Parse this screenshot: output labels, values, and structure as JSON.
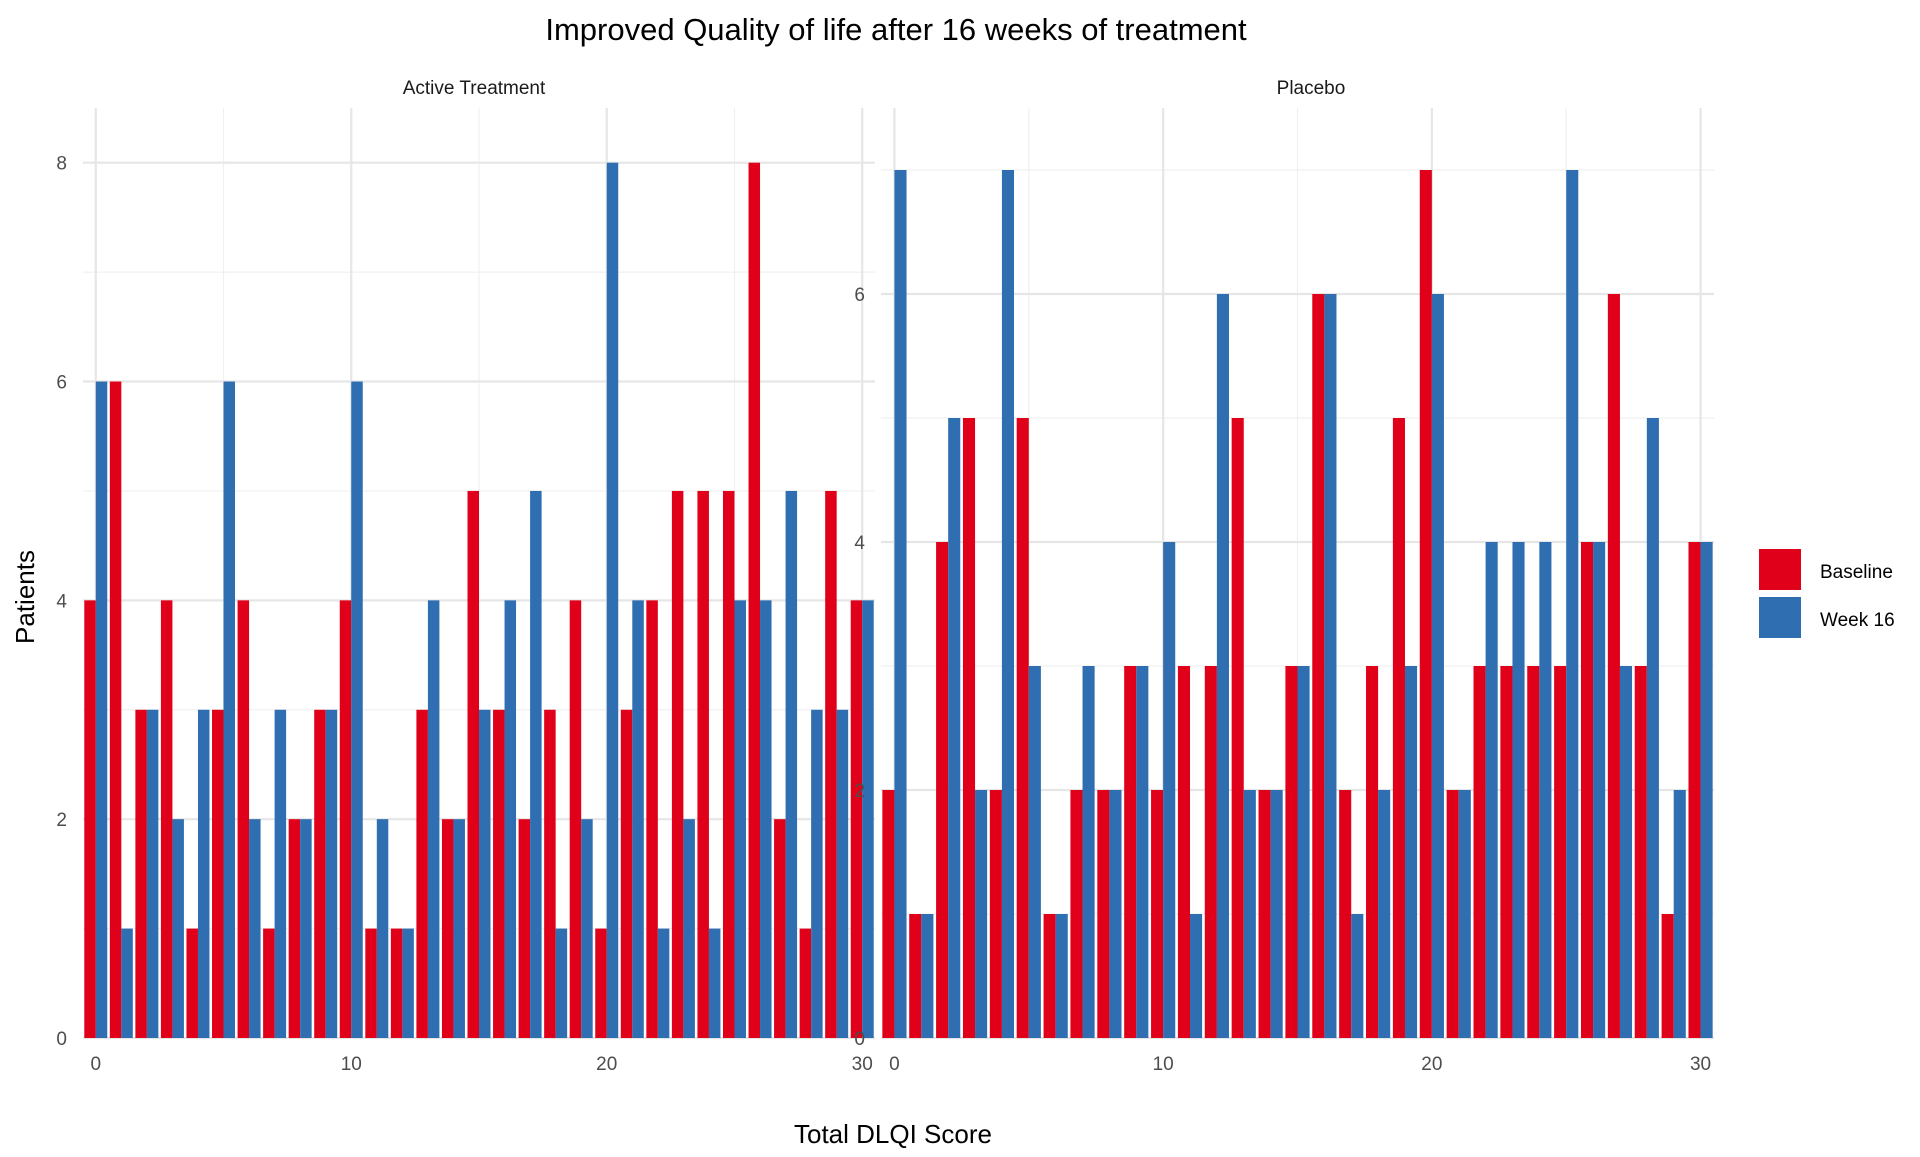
{
  "chart_data": {
    "type": "bar",
    "title": "Improved Quality of life after 16 weeks of treatment",
    "xlabel": "Total DLQI Score",
    "ylabel": "Patients",
    "legend": {
      "position": "right",
      "entries": [
        "Baseline",
        "Week 16"
      ]
    },
    "colors": {
      "Baseline": "#e0001a",
      "Week 16": "#2f6eb0"
    },
    "grid": true,
    "facets": [
      {
        "name": "Active Treatment",
        "xlim": [
          -0.5,
          30.5
        ],
        "xticks": [
          0,
          10,
          20,
          30
        ],
        "ylim": [
          0,
          8.5
        ],
        "yticks": [
          0,
          2,
          4,
          6,
          8
        ],
        "x": [
          0,
          1,
          2,
          3,
          4,
          5,
          6,
          7,
          8,
          9,
          10,
          11,
          12,
          13,
          14,
          15,
          16,
          17,
          18,
          19,
          20,
          21,
          22,
          23,
          24,
          25,
          26,
          27,
          28,
          29,
          30
        ],
        "series": [
          {
            "name": "Baseline",
            "values": [
              4,
              6,
              3,
              4,
              1,
              3,
              4,
              1,
              2,
              3,
              4,
              1,
              1,
              3,
              2,
              5,
              3,
              2,
              3,
              4,
              1,
              3,
              4,
              5,
              5,
              5,
              8,
              2,
              1,
              5,
              4
            ]
          },
          {
            "name": "Week 16",
            "values": [
              6,
              1,
              3,
              2,
              3,
              6,
              2,
              3,
              2,
              3,
              6,
              2,
              1,
              4,
              2,
              3,
              4,
              5,
              1,
              2,
              8,
              4,
              1,
              2,
              1,
              4,
              4,
              5,
              3,
              3,
              4
            ]
          }
        ]
      },
      {
        "name": "Placebo",
        "xlim": [
          -0.5,
          30.5
        ],
        "xticks": [
          0,
          10,
          20,
          30
        ],
        "ylim": [
          0,
          7.5
        ],
        "yticks": [
          0,
          2,
          4,
          6
        ],
        "x": [
          0,
          1,
          2,
          3,
          4,
          5,
          6,
          7,
          8,
          9,
          10,
          11,
          12,
          13,
          14,
          15,
          16,
          17,
          18,
          19,
          20,
          21,
          22,
          23,
          24,
          25,
          26,
          27,
          28,
          29,
          30
        ],
        "series": [
          {
            "name": "Baseline",
            "values": [
              2,
              1,
              4,
              5,
              2,
              5,
              1,
              2,
              2,
              3,
              2,
              3,
              3,
              5,
              2,
              3,
              6,
              2,
              3,
              5,
              7,
              2,
              3,
              3,
              3,
              3,
              4,
              6,
              3,
              1,
              4
            ]
          },
          {
            "name": "Week 16",
            "values": [
              7,
              1,
              5,
              2,
              7,
              3,
              1,
              3,
              2,
              3,
              4,
              1,
              6,
              2,
              2,
              3,
              6,
              1,
              2,
              3,
              6,
              2,
              4,
              4,
              4,
              7,
              4,
              3,
              5,
              2,
              4
            ]
          }
        ]
      }
    ]
  }
}
